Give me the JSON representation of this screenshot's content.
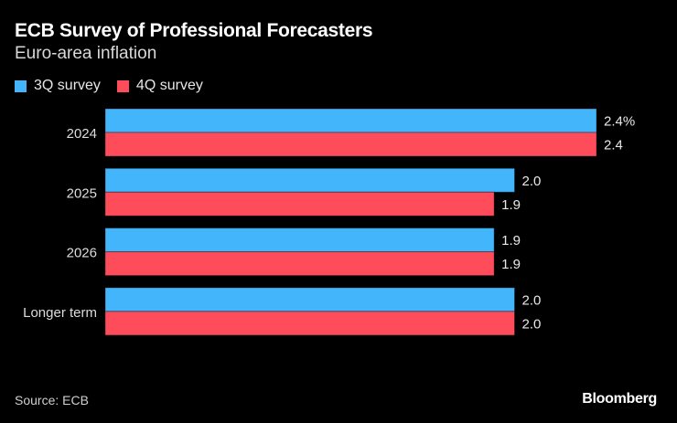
{
  "title": "ECB Survey of Professional Forecasters",
  "subtitle": "Euro-area inflation",
  "source": "Source: ECB",
  "logo": "Bloomberg",
  "colors": {
    "3Q survey": "#43b6fb",
    "4Q survey": "#ff4c5b",
    "background": "#000000"
  },
  "chart_data": {
    "type": "bar",
    "orientation": "horizontal",
    "categories": [
      "2024",
      "2025",
      "2026",
      "Longer term"
    ],
    "series": [
      {
        "name": "3Q survey",
        "values": [
          2.4,
          2.0,
          1.9,
          2.0
        ],
        "labels": [
          "2.4%",
          "2.0",
          "1.9",
          "2.0"
        ]
      },
      {
        "name": "4Q survey",
        "values": [
          2.4,
          1.9,
          1.9,
          2.0
        ],
        "labels": [
          "2.4",
          "1.9",
          "1.9",
          "2.0"
        ]
      }
    ],
    "xlim": [
      0,
      2.4
    ],
    "grid": false,
    "legend": "top-left"
  }
}
